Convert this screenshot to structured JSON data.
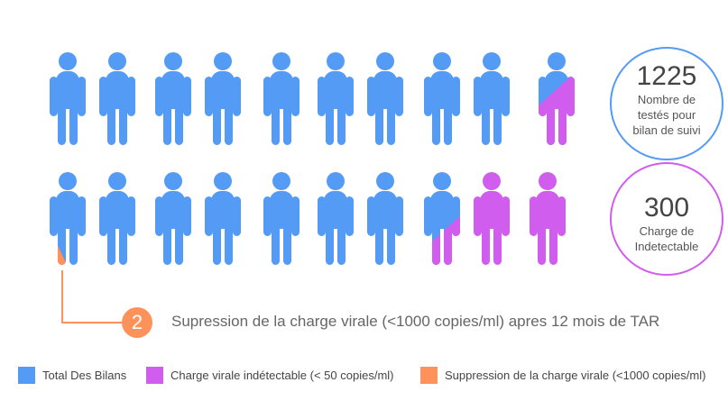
{
  "chart_data": {
    "type": "pictogram",
    "rows": [
      [
        "blue",
        "blue",
        "blue",
        "blue",
        "blue",
        "blue",
        "blue",
        "blue",
        "blue",
        "split-top"
      ],
      [
        "orange-tip",
        "blue",
        "blue",
        "blue",
        "blue",
        "blue",
        "blue",
        "split-mid",
        "purple",
        "purple"
      ]
    ],
    "colors": {
      "blue": "#549BF5",
      "purple": "#D15DEF",
      "orange": "#FF915A"
    },
    "stats": [
      {
        "value": "1225",
        "label": "Nombre de testés pour bilan de suivi"
      },
      {
        "value": "300",
        "label": "Charge de Indetectable"
      }
    ],
    "annotation": {
      "badge": "2",
      "text": "Supression de la charge virale (<1000 copies/ml) apres 12 mois de TAR"
    },
    "legend": [
      {
        "label": "Total Des Bilans",
        "color": "#549BF5"
      },
      {
        "label": "Charge virale indétectable (< 50 copies/ml)",
        "color": "#D15DEF"
      },
      {
        "label": "Suppression de la charge virale (<1000 copies/ml)",
        "color": "#FF915A"
      }
    ]
  }
}
